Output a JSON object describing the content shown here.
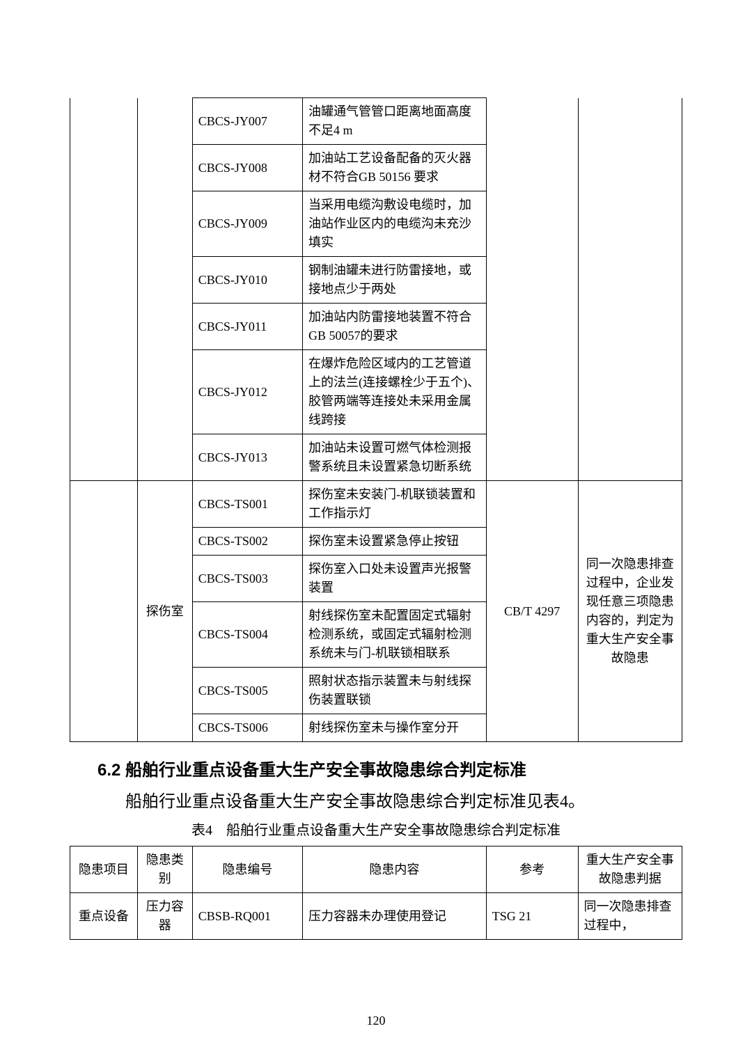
{
  "table1": {
    "columns": {
      "col1_width": "11%",
      "col2_width": "9%",
      "col3_width": "18%",
      "col4_width": "30%",
      "col5_width": "15%",
      "col6_width": "17%"
    },
    "rows_group1": [
      {
        "code": "CBCS-JY007",
        "content": "油罐通气管管口距离地面高度不足4 m"
      },
      {
        "code": "CBCS-JY008",
        "content": "加油站工艺设备配备的灭火器材不符合GB 50156 要求"
      },
      {
        "code": "CBCS-JY009",
        "content": "当采用电缆沟敷设电缆时，加油站作业区内的电缆沟未充沙填实"
      },
      {
        "code": "CBCS-JY010",
        "content": "钢制油罐未进行防雷接地，或接地点少于两处"
      },
      {
        "code": "CBCS-JY011",
        "content": "加油站内防雷接地装置不符合GB 50057的要求"
      },
      {
        "code": "CBCS-JY012",
        "content": "在爆炸危险区域内的工艺管道上的法兰(连接螺栓少于五个)、胶管两端等连接处未采用金属线跨接"
      },
      {
        "code": "CBCS-JY013",
        "content": "加油站未设置可燃气体检测报警系统且未设置紧急切断系统"
      }
    ],
    "group2_label": "探伤室",
    "group2_ref": "CB/T 4297",
    "group2_note": "同一次隐患排查过程中，企业发现任意三项隐患内容的，判定为重大生产安全事故隐患",
    "rows_group2": [
      {
        "code": "CBCS-TS001",
        "content": "探伤室未安装门-机联锁装置和工作指示灯"
      },
      {
        "code": "CBCS-TS002",
        "content": "探伤室未设置紧急停止按钮"
      },
      {
        "code": "CBCS-TS003",
        "content": "探伤室入口处未设置声光报警装置"
      },
      {
        "code": "CBCS-TS004",
        "content": "射线探伤室未配置固定式辐射检测系统，或固定式辐射检测系统未与门-机联锁相联系"
      },
      {
        "code": "CBCS-TS005",
        "content": "照射状态指示装置未与射线探伤装置联锁"
      },
      {
        "code": "CBCS-TS006",
        "content": "射线探伤室未与操作室分开"
      }
    ]
  },
  "section_heading": "6.2 船舶行业重点设备重大生产安全事故隐患综合判定标准",
  "body_text": "船舶行业重点设备重大生产安全事故隐患综合判定标准见表4。",
  "table4_caption": "表4　船舶行业重点设备重大生产安全事故隐患综合判定标准",
  "table4": {
    "headers": [
      "隐患项目",
      "隐患类别",
      "隐患编号",
      "隐患内容",
      "参考",
      "重大生产安全事故隐患判据"
    ],
    "row1": {
      "col1": "重点设备",
      "col2": "压力容器",
      "code": "CBSB-RQ001",
      "content": "压力容器未办理使用登记",
      "ref": "TSG 21",
      "note": "同一次隐患排查过程中，"
    }
  },
  "page_number": "120",
  "colors": {
    "background": "#ffffff",
    "border": "#000000",
    "text": "#000000"
  },
  "fonts": {
    "body": "SimSun",
    "heading": "SimHei",
    "body_size": 18,
    "heading_size": 24,
    "caption_size": 20
  }
}
